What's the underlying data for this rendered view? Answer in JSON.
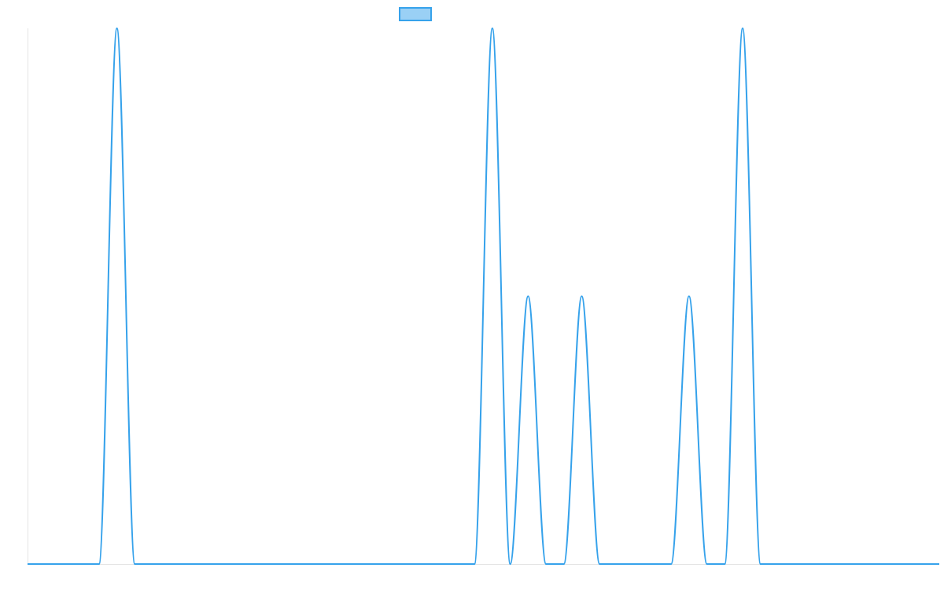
{
  "chart_data": {
    "type": "line",
    "title": "",
    "xlabel": "",
    "ylabel": "",
    "xlim": [
      0,
      51
    ],
    "ylim": [
      0,
      1
    ],
    "grid": false,
    "legend": {
      "position": "top-center",
      "entries": [
        ""
      ]
    },
    "colors": {
      "line": "#36a2eb",
      "legend_fill": "#9ad0f5",
      "axis": "#e5e5e5"
    },
    "x": [
      0,
      1,
      2,
      3,
      4,
      5,
      6,
      7,
      8,
      9,
      10,
      11,
      12,
      13,
      14,
      15,
      16,
      17,
      18,
      19,
      20,
      21,
      22,
      23,
      24,
      25,
      26,
      27,
      28,
      29,
      30,
      31,
      32,
      33,
      34,
      35,
      36,
      37,
      38,
      39,
      40,
      41,
      42,
      43,
      44,
      45,
      46,
      47,
      48,
      49,
      50,
      51
    ],
    "series": [
      {
        "values": [
          0,
          0,
          0,
          0,
          0,
          1,
          0,
          0,
          0,
          0,
          0,
          0,
          0,
          0,
          0,
          0,
          0,
          0,
          0,
          0,
          0,
          0,
          0,
          0,
          0,
          0,
          1,
          0,
          0.5,
          0,
          0,
          0.5,
          0,
          0,
          0,
          0,
          0,
          0.5,
          0,
          0,
          1,
          0,
          0,
          0,
          0,
          0,
          0,
          0,
          0,
          0,
          0,
          0
        ]
      }
    ]
  }
}
